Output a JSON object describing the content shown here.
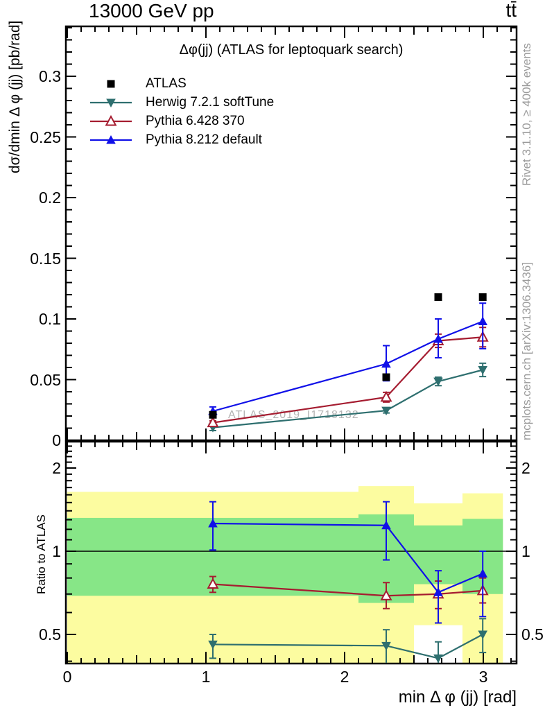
{
  "header": {
    "left": "13000 GeV pp",
    "right": "tt̄"
  },
  "panel_title": "Δφ(jj) (ATLAS for leptoquark search)",
  "watermark": "ATLAS_2019_I1718132",
  "side_captions": {
    "top": "Rivet 3.1.10, ≥ 400k events",
    "bottom": "mcplots.cern.ch [arXiv:1306.3436]"
  },
  "axes": {
    "x": {
      "title": "min Δ φ (jj) [rad]",
      "ticks": [
        "0",
        "1",
        "2",
        "3"
      ],
      "tick_values": [
        0,
        1,
        2,
        3
      ],
      "range": [
        -0.01,
        3.24
      ]
    },
    "y_top": {
      "title": "dσ/dmin Δ φ (jj) [pb/rad]",
      "ticks": [
        "0.3",
        "0.25",
        "0.2",
        "0.15",
        "0.1",
        "0.05",
        "0"
      ],
      "tick_values": [
        0.3,
        0.25,
        0.2,
        0.15,
        0.1,
        0.05,
        0
      ],
      "range": [
        0,
        0.3412
      ]
    },
    "y_ratio": {
      "title": "Ratio to ATLAS",
      "ticks": [
        "2",
        "1",
        "0.5"
      ],
      "tick_values": [
        2,
        1,
        0.5
      ],
      "scale": "log",
      "range": [
        0.392,
        2.49
      ]
    }
  },
  "legend": [
    {
      "label": "ATLAS",
      "marker": "square-filled",
      "color": "#000000",
      "line": false
    },
    {
      "label": "Herwig 7.2.1 softTune",
      "marker": "triangle-down-filled",
      "color": "#2E6F6F",
      "line": true
    },
    {
      "label": "Pythia 6.428 370",
      "marker": "triangle-up-open",
      "color": "#A51C30",
      "line": true
    },
    {
      "label": "Pythia 8.212 default",
      "marker": "triangle-up-filled",
      "color": "#1010E8",
      "line": true
    }
  ],
  "chart_data": {
    "type": "line",
    "title": "Δφ(jj) (ATLAS for leptoquark search)",
    "xlabel": "min Δ φ (jj) [rad]",
    "ylabel": "dσ/dmin Δ φ (jj) [pb/rad]",
    "ratio_ylabel": "Ratio to ATLAS",
    "x": [
      1.05,
      2.3,
      2.675,
      2.996
    ],
    "bin_edges": [
      0,
      2.1,
      2.5,
      2.85,
      3.1416
    ],
    "xlim": [
      -0.01,
      3.24
    ],
    "ylim_top": [
      0,
      0.3412
    ],
    "ylim_ratio": [
      0.392,
      2.49
    ],
    "series": [
      {
        "name": "ATLAS",
        "marker": "square-filled",
        "color": "#000000",
        "connect": false,
        "values": [
          0.021,
          0.052,
          0.118,
          0.118
        ]
      },
      {
        "name": "Herwig 7.2.1 softTune",
        "marker": "triangle-down-filled",
        "color": "#2E6F6F",
        "connect": true,
        "values": [
          0.0105,
          0.0245,
          0.0485,
          0.058
        ],
        "err_lo": [
          0.008,
          0.0225,
          0.045,
          0.0525
        ],
        "err_hi": [
          0.0115,
          0.0265,
          0.052,
          0.0635
        ]
      },
      {
        "name": "Pythia 6.428 370",
        "marker": "triangle-up-open",
        "color": "#A51C30",
        "connect": true,
        "values": [
          0.0145,
          0.0355,
          0.082,
          0.085
        ],
        "err_lo": [
          0.013,
          0.0315,
          0.0765,
          0.077
        ],
        "err_hi": [
          0.016,
          0.0395,
          0.0875,
          0.093
        ]
      },
      {
        "name": "Pythia 8.212 default",
        "marker": "triangle-up-filled",
        "color": "#1010E8",
        "connect": true,
        "values": [
          0.024,
          0.063,
          0.0835,
          0.098
        ],
        "err_lo": [
          0.0205,
          0.049,
          0.068,
          0.0755
        ],
        "err_hi": [
          0.0275,
          0.078,
          0.1,
          0.113
        ]
      }
    ],
    "ratio": {
      "reference_line": 1,
      "bands": {
        "yellow": {
          "color": "#FCFCA0",
          "lo": [
            0.3,
            0.3,
            0.54,
            0.3
          ],
          "hi": [
            1.64,
            1.72,
            1.49,
            1.62
          ]
        },
        "green": {
          "color": "#87E687",
          "lo": [
            0.69,
            0.65,
            0.76,
            0.7
          ],
          "hi": [
            1.32,
            1.36,
            1.24,
            1.31
          ]
        }
      },
      "series": [
        {
          "name": "Herwig 7.2.1 softTune",
          "marker": "triangle-down-filled",
          "color": "#2E6F6F",
          "values": [
            0.46,
            0.455,
            0.41,
            0.5
          ],
          "err_lo": [
            0.41,
            0.39,
            0.36,
            0.43
          ],
          "err_hi": [
            0.5,
            0.52,
            0.47,
            0.57
          ]
        },
        {
          "name": "Pythia 6.428 370",
          "marker": "triangle-up-open",
          "color": "#A51C30",
          "values": [
            0.76,
            0.69,
            0.7,
            0.72
          ],
          "err_lo": [
            0.71,
            0.62,
            0.62,
            0.65
          ],
          "err_hi": [
            0.81,
            0.77,
            0.78,
            0.8
          ]
        },
        {
          "name": "Pythia 8.212 default",
          "marker": "triangle-up-filled",
          "color": "#1010E8",
          "values": [
            1.26,
            1.24,
            0.71,
            0.83
          ],
          "err_lo": [
            1.01,
            0.93,
            0.55,
            0.58
          ],
          "err_hi": [
            1.51,
            1.51,
            0.85,
            1.0
          ]
        }
      ]
    }
  }
}
